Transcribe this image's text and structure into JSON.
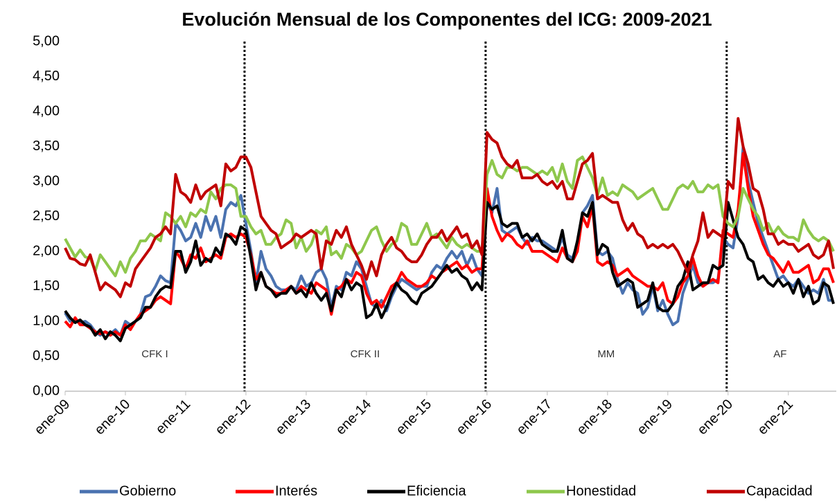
{
  "chart_data": {
    "type": "line",
    "title": "Evolución Mensual de los Componentes del ICG: 2009-2021",
    "categories": [
      "ene-09",
      null,
      null,
      null,
      null,
      null,
      null,
      null,
      null,
      null,
      null,
      null,
      "ene-10",
      null,
      null,
      null,
      null,
      null,
      null,
      null,
      null,
      null,
      null,
      null,
      "ene-11",
      null,
      null,
      null,
      null,
      null,
      null,
      null,
      null,
      null,
      null,
      null,
      "ene-12",
      null,
      null,
      null,
      null,
      null,
      null,
      null,
      null,
      null,
      null,
      null,
      "ene-13",
      null,
      null,
      null,
      null,
      null,
      null,
      null,
      null,
      null,
      null,
      null,
      "ene-14",
      null,
      null,
      null,
      null,
      null,
      null,
      null,
      null,
      null,
      null,
      null,
      "ene-15",
      null,
      null,
      null,
      null,
      null,
      null,
      null,
      null,
      null,
      null,
      null,
      "ene-16",
      null,
      null,
      null,
      null,
      null,
      null,
      null,
      null,
      null,
      null,
      null,
      "ene-17",
      null,
      null,
      null,
      null,
      null,
      null,
      null,
      null,
      null,
      null,
      null,
      "ene-18",
      null,
      null,
      null,
      null,
      null,
      null,
      null,
      null,
      null,
      null,
      null,
      "ene-19",
      null,
      null,
      null,
      null,
      null,
      null,
      null,
      null,
      null,
      null,
      null,
      "ene-20",
      null,
      null,
      null,
      null,
      null,
      null,
      null,
      null,
      null,
      null,
      null,
      "ene-21",
      null,
      null,
      null,
      null,
      null,
      null,
      null,
      null,
      null
    ],
    "series": [
      {
        "name": "Gobierno",
        "color": "#4a72b0",
        "values": [
          1.12,
          1.0,
          1.02,
          0.98,
          1.0,
          0.95,
          0.85,
          0.8,
          0.85,
          0.82,
          0.88,
          0.8,
          1.0,
          0.95,
          1.0,
          1.1,
          1.35,
          1.38,
          1.5,
          1.65,
          1.58,
          1.55,
          2.4,
          2.3,
          2.15,
          2.2,
          2.4,
          2.2,
          2.5,
          2.3,
          2.5,
          2.2,
          2.6,
          2.7,
          2.65,
          2.8,
          2.4,
          2.0,
          1.55,
          2.0,
          1.75,
          1.65,
          1.5,
          1.45,
          1.45,
          1.5,
          1.45,
          1.65,
          1.5,
          1.55,
          1.7,
          1.75,
          1.6,
          1.2,
          1.5,
          1.45,
          1.7,
          1.65,
          1.85,
          1.75,
          1.5,
          1.25,
          1.2,
          1.3,
          1.15,
          1.35,
          1.5,
          1.6,
          1.55,
          1.5,
          1.45,
          1.5,
          1.5,
          1.7,
          1.8,
          1.75,
          1.9,
          2.0,
          1.9,
          2.0,
          1.8,
          1.95,
          1.75,
          1.65,
          2.7,
          2.55,
          2.9,
          2.3,
          2.25,
          2.3,
          2.35,
          2.2,
          2.1,
          2.2,
          2.15,
          2.15,
          2.1,
          2.05,
          2.0,
          2.2,
          1.95,
          1.9,
          2.1,
          2.55,
          2.65,
          2.8,
          2.0,
          1.95,
          2.0,
          1.9,
          1.6,
          1.4,
          1.55,
          1.45,
          1.4,
          1.1,
          1.2,
          1.5,
          1.15,
          1.3,
          1.1,
          0.95,
          1.0,
          1.4,
          1.6,
          1.8,
          1.55,
          1.5,
          1.55,
          1.55,
          1.6,
          2.2,
          2.1,
          2.05,
          2.5,
          3.5,
          3.0,
          2.7,
          2.4,
          2.2,
          2.0,
          1.8,
          1.6,
          1.65,
          1.55,
          1.5,
          1.6,
          1.5,
          1.4,
          1.45,
          1.4,
          1.6,
          1.3,
          1.3
        ]
      },
      {
        "name": "Interés",
        "color": "#ff0000",
        "values": [
          1.0,
          0.92,
          1.05,
          0.95,
          0.95,
          0.9,
          0.85,
          0.82,
          0.85,
          0.8,
          0.85,
          0.8,
          0.95,
          0.88,
          1.0,
          1.1,
          1.15,
          1.2,
          1.3,
          1.35,
          1.3,
          1.25,
          2.0,
          1.9,
          1.75,
          1.95,
          1.9,
          2.05,
          1.85,
          1.9,
          1.95,
          1.9,
          2.2,
          2.25,
          2.2,
          2.25,
          2.2,
          1.95,
          1.6,
          1.7,
          1.5,
          1.45,
          1.4,
          1.4,
          1.45,
          1.5,
          1.4,
          1.5,
          1.45,
          1.4,
          1.55,
          1.5,
          1.45,
          1.1,
          1.45,
          1.5,
          1.6,
          1.55,
          1.7,
          1.65,
          1.4,
          1.25,
          1.3,
          1.2,
          1.35,
          1.5,
          1.55,
          1.7,
          1.6,
          1.55,
          1.5,
          1.5,
          1.55,
          1.65,
          1.6,
          1.7,
          1.75,
          1.8,
          1.85,
          1.75,
          1.8,
          1.7,
          1.75,
          1.75,
          2.9,
          2.5,
          2.3,
          2.15,
          2.25,
          2.2,
          2.1,
          2.05,
          2.15,
          2.0,
          2.0,
          2.0,
          1.95,
          1.9,
          1.85,
          2.05,
          1.9,
          1.85,
          2.0,
          2.5,
          2.35,
          2.65,
          1.85,
          1.8,
          1.85,
          1.8,
          1.65,
          1.7,
          1.75,
          1.65,
          1.6,
          1.55,
          1.5,
          1.5,
          1.45,
          1.55,
          1.3,
          1.25,
          1.35,
          1.55,
          1.65,
          1.9,
          1.65,
          1.5,
          1.55,
          1.6,
          1.55,
          2.3,
          2.25,
          2.2,
          2.6,
          3.4,
          2.9,
          2.5,
          2.3,
          2.1,
          1.95,
          1.9,
          1.8,
          1.7,
          1.85,
          1.7,
          1.7,
          1.75,
          1.8,
          1.55,
          1.6,
          1.75,
          1.75,
          1.55
        ]
      },
      {
        "name": "Eficiencia",
        "color": "#000000",
        "values": [
          1.15,
          1.05,
          0.98,
          1.02,
          0.95,
          0.92,
          0.8,
          0.88,
          0.75,
          0.85,
          0.8,
          0.72,
          0.9,
          0.95,
          1.0,
          1.05,
          1.2,
          1.2,
          1.35,
          1.45,
          1.5,
          1.48,
          2.0,
          2.0,
          1.7,
          1.85,
          2.15,
          1.8,
          1.9,
          1.85,
          2.05,
          1.95,
          2.25,
          2.2,
          2.1,
          2.35,
          2.3,
          1.9,
          1.45,
          1.7,
          1.5,
          1.45,
          1.35,
          1.4,
          1.4,
          1.5,
          1.4,
          1.45,
          1.35,
          1.55,
          1.4,
          1.3,
          1.4,
          1.15,
          1.45,
          1.35,
          1.6,
          1.45,
          1.55,
          1.5,
          1.05,
          1.1,
          1.25,
          1.05,
          1.2,
          1.4,
          1.55,
          1.45,
          1.4,
          1.3,
          1.25,
          1.4,
          1.45,
          1.5,
          1.6,
          1.7,
          1.8,
          1.7,
          1.75,
          1.65,
          1.6,
          1.45,
          1.55,
          1.45,
          2.7,
          2.6,
          2.65,
          2.4,
          2.35,
          2.4,
          2.4,
          2.2,
          2.25,
          2.15,
          2.25,
          2.1,
          2.05,
          2.0,
          2.0,
          2.3,
          1.9,
          1.85,
          2.15,
          2.55,
          2.5,
          2.7,
          1.95,
          2.1,
          2.05,
          1.7,
          1.5,
          1.55,
          1.6,
          1.55,
          1.2,
          1.25,
          1.3,
          1.55,
          1.2,
          1.15,
          1.15,
          1.25,
          1.5,
          1.6,
          1.85,
          1.45,
          1.5,
          1.55,
          1.55,
          1.8,
          1.75,
          1.8,
          2.7,
          2.45,
          2.2,
          2.1,
          1.9,
          1.85,
          1.6,
          1.65,
          1.55,
          1.5,
          1.6,
          1.5,
          1.55,
          1.4,
          1.6,
          1.35,
          1.5,
          1.25,
          1.3,
          1.55,
          1.5,
          1.25
        ]
      },
      {
        "name": "Honestidad",
        "color": "#8ec74c",
        "values": [
          2.18,
          2.05,
          1.92,
          2.02,
          1.92,
          1.9,
          1.72,
          1.95,
          1.85,
          1.75,
          1.65,
          1.85,
          1.7,
          1.9,
          2.0,
          2.15,
          2.15,
          2.25,
          2.2,
          2.15,
          2.55,
          2.5,
          2.4,
          2.5,
          2.35,
          2.55,
          2.5,
          2.6,
          2.55,
          2.85,
          2.75,
          2.9,
          2.95,
          2.95,
          2.9,
          2.5,
          2.5,
          2.35,
          2.25,
          2.3,
          2.1,
          2.1,
          2.2,
          2.25,
          2.45,
          2.4,
          2.05,
          2.2,
          2.0,
          2.1,
          2.3,
          2.25,
          2.35,
          1.95,
          2.0,
          1.9,
          2.1,
          2.05,
          1.95,
          2.0,
          2.15,
          2.3,
          2.35,
          2.15,
          2.0,
          2.1,
          2.15,
          2.4,
          2.35,
          2.1,
          2.1,
          2.25,
          2.4,
          2.2,
          2.25,
          2.15,
          2.05,
          2.2,
          2.1,
          2.05,
          2.1,
          2.05,
          2.0,
          2.0,
          3.1,
          3.3,
          3.1,
          3.05,
          3.2,
          3.2,
          3.15,
          3.2,
          3.2,
          3.15,
          3.1,
          3.15,
          3.1,
          3.2,
          3.0,
          3.25,
          3.0,
          2.9,
          3.3,
          3.35,
          3.2,
          3.05,
          2.8,
          3.05,
          2.8,
          2.85,
          2.8,
          2.95,
          2.9,
          2.85,
          2.75,
          2.8,
          2.85,
          2.9,
          2.75,
          2.6,
          2.6,
          2.75,
          2.9,
          2.95,
          2.9,
          3.0,
          2.85,
          2.85,
          2.95,
          2.9,
          2.95,
          2.5,
          2.4,
          2.35,
          2.5,
          2.9,
          2.75,
          2.6,
          2.5,
          2.3,
          2.4,
          2.25,
          2.35,
          2.25,
          2.2,
          2.2,
          2.15,
          2.45,
          2.3,
          2.2,
          2.15,
          2.2,
          2.15,
          2.0
        ]
      },
      {
        "name": "Capacidad",
        "color": "#c00000",
        "values": [
          2.05,
          1.9,
          1.88,
          1.82,
          1.8,
          1.95,
          1.7,
          1.45,
          1.55,
          1.5,
          1.45,
          1.35,
          1.55,
          1.5,
          1.75,
          1.85,
          1.95,
          2.05,
          2.2,
          2.25,
          2.35,
          2.25,
          3.1,
          2.85,
          2.8,
          2.7,
          2.95,
          2.75,
          2.85,
          2.9,
          2.95,
          2.65,
          3.25,
          3.15,
          3.2,
          3.35,
          3.35,
          3.2,
          2.85,
          2.5,
          2.4,
          2.3,
          2.25,
          2.05,
          2.1,
          2.15,
          2.25,
          2.2,
          2.25,
          2.3,
          2.25,
          1.75,
          2.15,
          2.1,
          2.3,
          2.2,
          2.35,
          2.1,
          1.95,
          1.8,
          1.6,
          1.85,
          1.65,
          1.95,
          2.1,
          2.2,
          2.05,
          2.0,
          1.9,
          1.85,
          1.85,
          1.95,
          2.1,
          2.2,
          2.2,
          2.3,
          2.15,
          2.25,
          2.35,
          2.2,
          2.25,
          2.05,
          2.15,
          1.95,
          3.7,
          3.6,
          3.55,
          3.35,
          3.25,
          3.2,
          3.3,
          3.05,
          3.05,
          3.05,
          3.1,
          3.0,
          2.95,
          3.0,
          2.9,
          3.0,
          2.75,
          2.75,
          3.0,
          3.25,
          3.3,
          3.4,
          2.75,
          2.8,
          2.75,
          2.7,
          2.7,
          2.45,
          2.3,
          2.4,
          2.25,
          2.2,
          2.05,
          2.1,
          2.05,
          2.1,
          2.05,
          2.1,
          2.0,
          1.85,
          1.7,
          1.95,
          2.15,
          2.55,
          2.2,
          2.3,
          2.25,
          2.2,
          3.0,
          2.9,
          3.9,
          3.5,
          3.25,
          2.9,
          2.85,
          2.6,
          2.25,
          2.25,
          2.1,
          2.15,
          2.1,
          2.1,
          2.0,
          2.05,
          2.1,
          1.95,
          1.9,
          1.95,
          2.15,
          1.75
        ]
      }
    ],
    "ylim": [
      0,
      5
    ],
    "yticks": [
      {
        "value": 0,
        "label": "0,00"
      },
      {
        "value": 0.5,
        "label": "0,50"
      },
      {
        "value": 1,
        "label": "1,00"
      },
      {
        "value": 1.5,
        "label": "1,50"
      },
      {
        "value": 2,
        "label": "2,00"
      },
      {
        "value": 2.5,
        "label": "2,50"
      },
      {
        "value": 3,
        "label": "3,00"
      },
      {
        "value": 3.5,
        "label": "3,50"
      },
      {
        "value": 4,
        "label": "4,00"
      },
      {
        "value": 4.5,
        "label": "4,50"
      },
      {
        "value": 5,
        "label": "5,00"
      }
    ],
    "grid": false,
    "legend": "bottom",
    "period_breaks": [
      "ene-12",
      "ene-16",
      "ene-20"
    ],
    "annotations": [
      "CFK I",
      "CFK II",
      "MM",
      "AF"
    ]
  }
}
